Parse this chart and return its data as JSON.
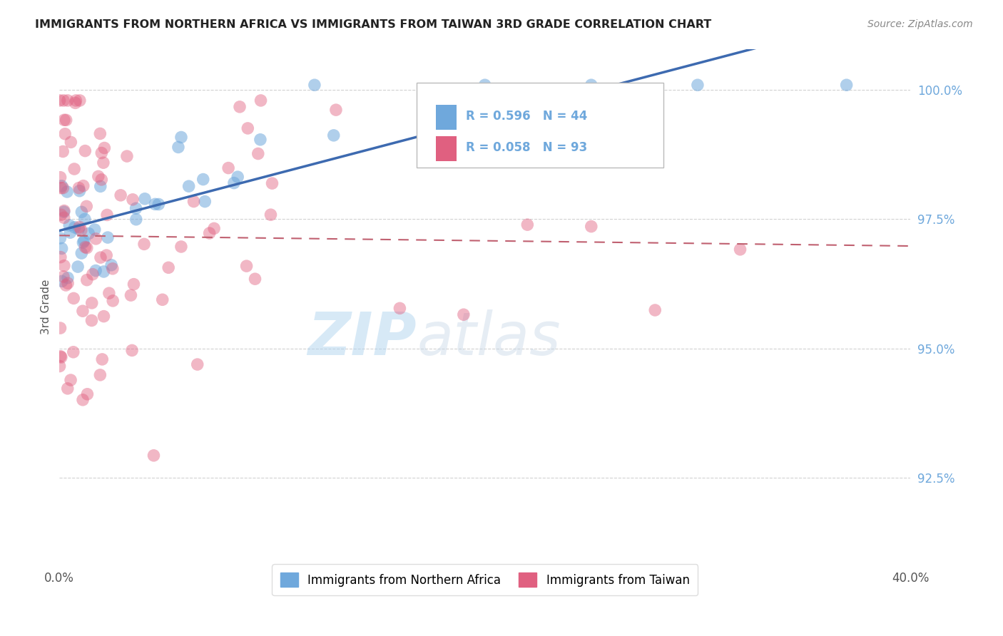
{
  "title": "IMMIGRANTS FROM NORTHERN AFRICA VS IMMIGRANTS FROM TAIWAN 3RD GRADE CORRELATION CHART",
  "source": "Source: ZipAtlas.com",
  "xlabel_blue": "Immigrants from Northern Africa",
  "xlabel_pink": "Immigrants from Taiwan",
  "ylabel": "3rd Grade",
  "xlim": [
    0.0,
    0.4
  ],
  "ylim": [
    0.908,
    1.008
  ],
  "yticks": [
    0.925,
    0.95,
    0.975,
    1.0
  ],
  "ytick_labels": [
    "92.5%",
    "95.0%",
    "97.5%",
    "100.0%"
  ],
  "xticks": [
    0.0,
    0.4
  ],
  "xtick_labels": [
    "0.0%",
    "40.0%"
  ],
  "R_blue": 0.596,
  "N_blue": 44,
  "R_pink": 0.058,
  "N_pink": 93,
  "blue_color": "#6fa8dc",
  "pink_color": "#e06080",
  "trend_blue_color": "#3d6ab0",
  "trend_pink_color": "#c06070",
  "background_color": "#ffffff",
  "grid_color": "#cccccc",
  "watermark_zip": "ZIP",
  "watermark_atlas": "atlas",
  "title_color": "#222222",
  "source_color": "#888888",
  "ytick_color": "#6fa8dc",
  "xtick_color": "#555555",
  "ylabel_color": "#555555"
}
